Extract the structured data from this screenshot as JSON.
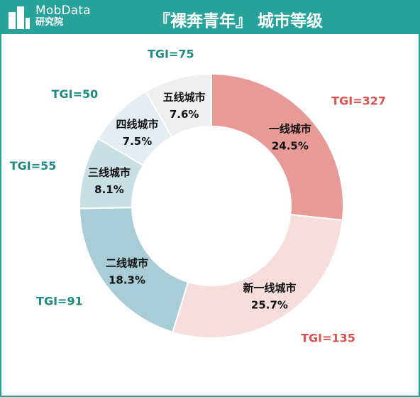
{
  "header": {
    "brand_en": "MobData",
    "brand_cn": "研究院",
    "title": "『裸奔青年』 城市等级"
  },
  "colors": {
    "frame": "#27a39b",
    "tgi_high": "#d9534f",
    "tgi_low": "#1e8a82"
  },
  "chart_data": {
    "type": "pie",
    "donut": true,
    "categories": [
      "一线城市",
      "新一线城市",
      "二线城市",
      "三线城市",
      "四线城市",
      "五线城市"
    ],
    "values": [
      24.5,
      25.7,
      18.3,
      8.1,
      7.5,
      7.6
    ],
    "value_labels": [
      "24.5%",
      "25.7%",
      "18.3%",
      "8.1%",
      "7.5%",
      "7.6%"
    ],
    "tgi": [
      "TGI=327",
      "TGI=135",
      "TGI=91",
      "TGI=55",
      "TGI=50",
      "TGI=75"
    ],
    "colors": [
      "#e89a97",
      "#f7dede",
      "#a8cdd6",
      "#c8dfe6",
      "#e3eef2",
      "#efefef"
    ],
    "start": "12 o'clock",
    "direction": "clockwise"
  }
}
